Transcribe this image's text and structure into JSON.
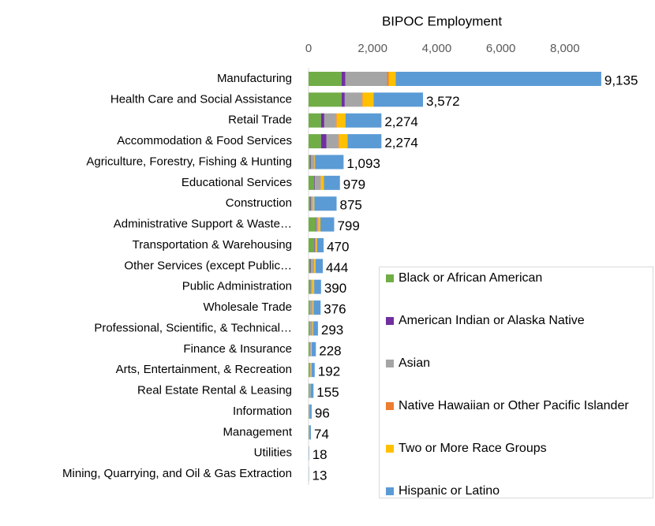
{
  "chart_data": {
    "type": "stacked-bar-horizontal",
    "title": "BIPOC Employment",
    "categories": [
      "Manufacturing",
      "Health Care and Social Assistance",
      "Retail Trade",
      "Accommodation & Food Services",
      "Agriculture, Forestry, Fishing & Hunting",
      "Educational Services",
      "Construction",
      "Administrative Support & Waste…",
      "Transportation & Warehousing",
      "Other Services (except Public…",
      "Public Administration",
      "Wholesale Trade",
      "Professional, Scientific, & Technical…",
      "Finance & Insurance",
      "Arts, Entertainment, & Recreation",
      "Real Estate Rental & Leasing",
      "Information",
      "Management",
      "Utilities",
      "Mining, Quarrying, and Oil & Gas Extraction"
    ],
    "series": [
      {
        "name": "Black or African American",
        "color": "#70ad47",
        "values": [
          1030,
          1030,
          390,
          390,
          60,
          180,
          60,
          220,
          170,
          60,
          60,
          40,
          40,
          30,
          30,
          20,
          10,
          10,
          3,
          2
        ]
      },
      {
        "name": "American Indian or Alaska Native",
        "color": "#7030a0",
        "values": [
          120,
          100,
          100,
          170,
          20,
          20,
          20,
          20,
          15,
          15,
          10,
          5,
          5,
          5,
          5,
          5,
          2,
          2,
          1,
          1
        ]
      },
      {
        "name": "Asian",
        "color": "#a5a5a5",
        "values": [
          1300,
          540,
          370,
          370,
          100,
          180,
          50,
          60,
          50,
          100,
          40,
          80,
          80,
          40,
          30,
          20,
          15,
          15,
          3,
          2
        ]
      },
      {
        "name": "Native Hawaiian or Other Pacific Islander",
        "color": "#ed7d31",
        "values": [
          50,
          20,
          20,
          20,
          5,
          10,
          10,
          10,
          5,
          5,
          5,
          5,
          3,
          3,
          2,
          2,
          1,
          1,
          0,
          0
        ]
      },
      {
        "name": "Two or More Race Groups",
        "color": "#ffc000",
        "values": [
          220,
          340,
          270,
          270,
          15,
          90,
          40,
          60,
          30,
          40,
          60,
          30,
          20,
          20,
          25,
          10,
          8,
          6,
          1,
          1
        ]
      },
      {
        "name": "Hispanic or Latino",
        "color": "#5b9bd5",
        "values": [
          6415,
          1542,
          1124,
          1054,
          893,
          499,
          695,
          429,
          200,
          224,
          215,
          216,
          145,
          130,
          100,
          98,
          60,
          40,
          10,
          7
        ]
      }
    ],
    "totals": [
      9135,
      3572,
      2274,
      2274,
      1093,
      979,
      875,
      799,
      470,
      444,
      390,
      376,
      293,
      228,
      192,
      155,
      96,
      74,
      18,
      13
    ],
    "total_labels": [
      "9,135",
      "3,572",
      "2,274",
      "2,274",
      "1,093",
      "979",
      "875",
      "799",
      "470",
      "444",
      "390",
      "376",
      "293",
      "228",
      "192",
      "155",
      "96",
      "74",
      "18",
      "13"
    ],
    "xlim": [
      0,
      10000
    ],
    "xticks": [
      0,
      {
        "value": 2000,
        "label": "2,000"
      },
      {
        "value": 4000,
        "label": "4,000"
      },
      {
        "value": 6000,
        "label": "6,000"
      },
      {
        "value": 8000,
        "label": "8,000"
      }
    ],
    "legend": "lower right"
  }
}
